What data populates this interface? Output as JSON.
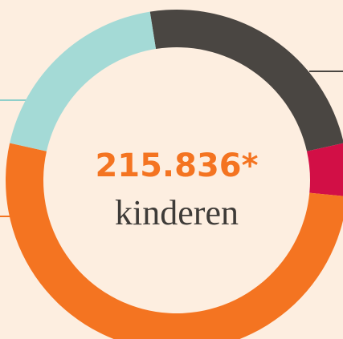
{
  "chart_data": {
    "type": "pie",
    "donut": true,
    "values": [
      24,
      5,
      52,
      19
    ],
    "colors": [
      "#4a4642",
      "#d20f46",
      "#f47421",
      "#a4dad6"
    ],
    "center_value": "215.836*",
    "center_label": "kinderen"
  }
}
